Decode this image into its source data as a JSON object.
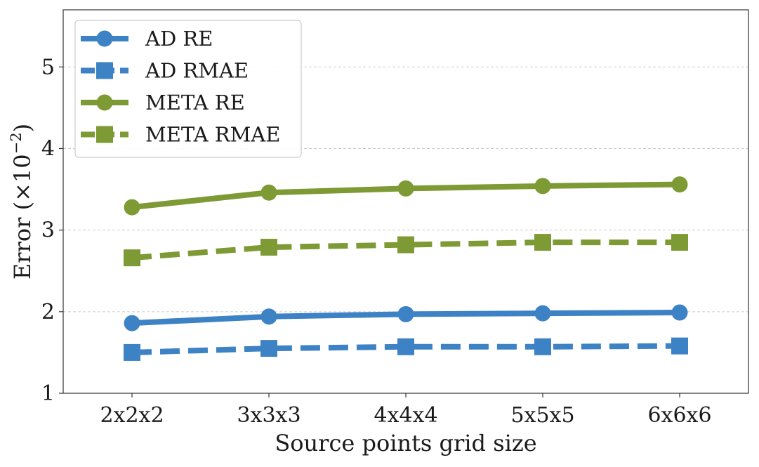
{
  "chart_data": {
    "type": "line",
    "title": "",
    "xlabel": "Source points grid size",
    "ylabel": "Error (×10",
    "ylabel_exponent": "−2",
    "ylabel_close": ")",
    "categories": [
      "2x2x2",
      "3x3x3",
      "4x4x4",
      "5x5x5",
      "6x6x6"
    ],
    "ylim": [
      1,
      5.7
    ],
    "yticks": [
      1,
      2,
      3,
      4,
      5
    ],
    "grid": "y-dashed",
    "legend_position": "top-left",
    "series": [
      {
        "name": "AD RE",
        "color": "#3d82c4",
        "linestyle": "solid",
        "marker": "circle",
        "values": [
          1.86,
          1.94,
          1.97,
          1.98,
          1.99
        ]
      },
      {
        "name": "AD RMAE",
        "color": "#3d82c4",
        "linestyle": "dashed",
        "marker": "square",
        "values": [
          1.5,
          1.55,
          1.57,
          1.57,
          1.58
        ]
      },
      {
        "name": "META RE",
        "color": "#7d9a34",
        "linestyle": "solid",
        "marker": "circle",
        "values": [
          3.28,
          3.46,
          3.51,
          3.54,
          3.56
        ]
      },
      {
        "name": "META RMAE",
        "color": "#7d9a34",
        "linestyle": "dashed",
        "marker": "square",
        "values": [
          2.66,
          2.79,
          2.82,
          2.85,
          2.85
        ]
      }
    ]
  }
}
